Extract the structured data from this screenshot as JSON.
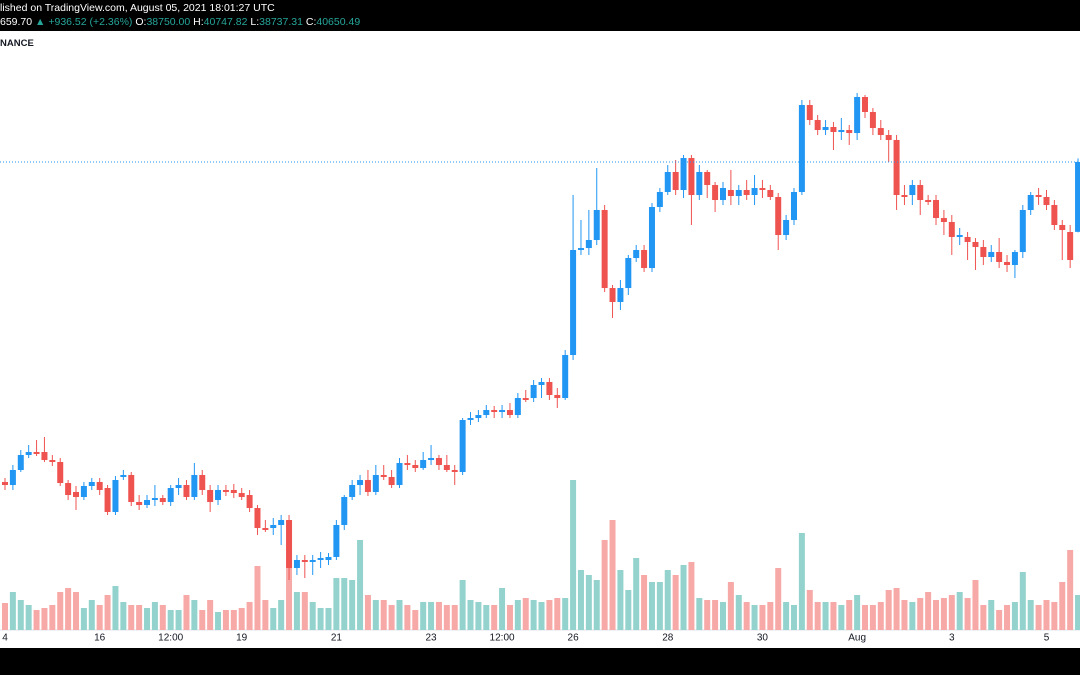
{
  "header": {
    "published": "lished on TradingView.com, August 05, 2021 18:01:27 UTC",
    "last": "659.70",
    "change": "▲ +936.52 (+2.36%)",
    "open_label": "O:",
    "open": "38750.00",
    "high_label": "H:",
    "high": "40747.82",
    "low_label": "L:",
    "low": "38737.31",
    "close_label": "C:",
    "close": "40650.49",
    "symbol": "NANCE"
  },
  "chart_data": {
    "type": "candlestick",
    "categories": [
      "4",
      null,
      null,
      null,
      null,
      null,
      null,
      null,
      null,
      null,
      null,
      null,
      "16",
      null,
      null,
      null,
      null,
      null,
      null,
      null,
      null,
      "12:00",
      null,
      null,
      null,
      null,
      null,
      null,
      null,
      null,
      "19",
      null,
      null,
      null,
      null,
      null,
      null,
      null,
      null,
      null,
      null,
      null,
      "21",
      null,
      null,
      null,
      null,
      null,
      null,
      null,
      null,
      null,
      null,
      null,
      "23",
      null,
      null,
      null,
      null,
      null,
      null,
      null,
      null,
      "12:00",
      null,
      null,
      null,
      null,
      null,
      null,
      null,
      null,
      "26",
      null,
      null,
      null,
      null,
      null,
      null,
      null,
      null,
      null,
      null,
      null,
      "28",
      null,
      null,
      null,
      null,
      null,
      null,
      null,
      null,
      null,
      null,
      null,
      "30",
      null,
      null,
      null,
      null,
      null,
      null,
      null,
      null,
      null,
      null,
      null,
      "Aug",
      null,
      null,
      null,
      null,
      null,
      null,
      null,
      null,
      null,
      null,
      null,
      "3",
      null,
      null,
      null,
      null,
      null,
      null,
      null,
      null,
      null,
      null,
      null,
      "5",
      null,
      null,
      null,
      null
    ],
    "open": [
      31946,
      31864,
      32272,
      32680,
      32762,
      32762,
      32544,
      32490,
      31918,
      31674,
      31538,
      31837,
      31946,
      31782,
      31130,
      32082,
      32136,
      31402,
      31320,
      31456,
      31510,
      31402,
      31782,
      31864,
      31538,
      32136,
      31728,
      31456,
      31728,
      31728,
      31646,
      31592,
      31238,
      30694,
      30694,
      30776,
      30912,
      29606,
      29824,
      29770,
      29824,
      29824,
      29906,
      30776,
      31538,
      31864,
      32000,
      31674,
      32136,
      32082,
      31864,
      32462,
      32408,
      32326,
      32544,
      32598,
      32408,
      32272,
      32218,
      33632,
      33686,
      33768,
      33904,
      33850,
      33904,
      33768,
      34230,
      34230,
      34584,
      34666,
      34312,
      34230,
      35400,
      38256,
      38310,
      38528,
      39344,
      37222,
      36842,
      37222,
      38038,
      38256,
      37766,
      39426,
      39834,
      40378,
      39888,
      40758,
      39752,
      40378,
      40024,
      39616,
      39888,
      39725,
      39888,
      39752,
      39942,
      39888,
      39698,
      38664,
      39072,
      39834,
      42200,
      41792,
      41520,
      41602,
      41466,
      41520,
      41438,
      42418,
      42010,
      41574,
      41384,
      41248,
      39752,
      39752,
      40024,
      39616,
      39616,
      39126,
      39018,
      38610,
      38610,
      38474,
      38338,
      38066,
      38202,
      37930,
      37848,
      38202,
      39344,
      39752,
      39698,
      39480,
      38936,
      38746,
      38750
    ],
    "high": [
      32054,
      32408,
      32816,
      32952,
      33088,
      33170,
      32680,
      32598,
      32000,
      31837,
      31946,
      32054,
      32054,
      31864,
      32109,
      32272,
      32218,
      31592,
      31592,
      31864,
      31592,
      31864,
      32054,
      32000,
      32462,
      32272,
      31864,
      31864,
      31864,
      31891,
      31782,
      31728,
      31320,
      30912,
      30966,
      31048,
      31048,
      29960,
      29960,
      29960,
      30042,
      30014,
      30912,
      31592,
      32000,
      32136,
      32272,
      32408,
      32408,
      32272,
      32598,
      32680,
      32544,
      32762,
      32952,
      32680,
      32680,
      32408,
      33686,
      33850,
      33904,
      34040,
      34013,
      34040,
      34094,
      34366,
      34448,
      34720,
      34774,
      34774,
      34502,
      35536,
      39752,
      39072,
      39344,
      40486,
      39480,
      37304,
      37440,
      38120,
      38392,
      38392,
      39534,
      39942,
      40568,
      40704,
      40840,
      40840,
      40568,
      40432,
      40106,
      40106,
      40432,
      40024,
      40160,
      40296,
      40160,
      40024,
      39806,
      39208,
      39942,
      42336,
      42336,
      41928,
      41792,
      41738,
      41846,
      41656,
      42526,
      42472,
      42118,
      41792,
      41520,
      41384,
      40024,
      40160,
      40160,
      39752,
      39752,
      39344,
      39208,
      38854,
      38746,
      38582,
      38528,
      38392,
      38582,
      38120,
      38256,
      39480,
      39834,
      39942,
      39888,
      39616,
      39072,
      38936,
      40747.82
    ],
    "low": [
      31728,
      31728,
      32218,
      32598,
      32653,
      32490,
      32381,
      31837,
      31456,
      31184,
      31456,
      31728,
      31592,
      31048,
      31048,
      32000,
      31293,
      31184,
      31238,
      31293,
      31320,
      31293,
      31592,
      31456,
      31456,
      31592,
      31130,
      31320,
      31565,
      31510,
      31456,
      31130,
      30504,
      30586,
      30504,
      30232,
      29280,
      29416,
      29334,
      29416,
      29606,
      29688,
      29824,
      30640,
      31456,
      31592,
      31565,
      31592,
      32000,
      31782,
      31782,
      32272,
      32218,
      32272,
      32408,
      32272,
      32218,
      31864,
      32136,
      33496,
      33578,
      33686,
      33686,
      33686,
      33686,
      33686,
      34122,
      34122,
      34230,
      34176,
      33958,
      34176,
      35264,
      38120,
      38120,
      38392,
      37114,
      36406,
      36624,
      37032,
      37930,
      37658,
      37658,
      39290,
      39752,
      39752,
      39670,
      38936,
      39616,
      39670,
      39290,
      39480,
      39480,
      39480,
      39616,
      39480,
      39670,
      39616,
      38256,
      38528,
      38936,
      39752,
      41656,
      41384,
      41384,
      40976,
      41248,
      41112,
      41248,
      41846,
      41384,
      41248,
      40650,
      39344,
      39480,
      39480,
      39208,
      39480,
      38936,
      38664,
      38120,
      38392,
      37984,
      37712,
      37848,
      37930,
      37766,
      37658,
      37494,
      38038,
      39208,
      39480,
      39344,
      38800,
      37984,
      37766,
      38737.31
    ],
    "close": [
      31864,
      32272,
      32680,
      32762,
      32707,
      32544,
      32490,
      31918,
      31592,
      31538,
      31837,
      31946,
      31728,
      31130,
      32000,
      32136,
      31402,
      31320,
      31456,
      31510,
      31402,
      31782,
      31864,
      31538,
      32136,
      31728,
      31402,
      31728,
      31674,
      31646,
      31538,
      31238,
      30694,
      30640,
      30776,
      30912,
      29606,
      29824,
      29770,
      29824,
      29878,
      29906,
      30776,
      31538,
      31864,
      32000,
      31674,
      32136,
      32082,
      31864,
      32462,
      32408,
      32326,
      32544,
      32598,
      32408,
      32272,
      32218,
      33632,
      33686,
      33768,
      33904,
      33850,
      33904,
      33768,
      34230,
      34176,
      34584,
      34666,
      34312,
      34230,
      35400,
      38256,
      38310,
      38528,
      39344,
      37222,
      36842,
      37222,
      38038,
      38256,
      37766,
      39426,
      39834,
      40378,
      39888,
      40758,
      39752,
      40378,
      40024,
      39616,
      39942,
      39725,
      39888,
      39752,
      39942,
      39888,
      39698,
      38664,
      39072,
      39834,
      42200,
      41792,
      41520,
      41602,
      41466,
      41520,
      41438,
      42418,
      42010,
      41574,
      41384,
      41248,
      39752,
      39698,
      40024,
      39616,
      39562,
      39126,
      39018,
      38610,
      38664,
      38474,
      38338,
      38066,
      38202,
      37930,
      37848,
      38202,
      39344,
      39752,
      39698,
      39480,
      38936,
      38800,
      37984,
      40650.49
    ],
    "volume": [
      5400,
      7600,
      6000,
      5000,
      4000,
      4400,
      5000,
      7600,
      8400,
      7600,
      4400,
      6000,
      5000,
      7000,
      8800,
      5600,
      5000,
      5000,
      4400,
      5600,
      5000,
      4000,
      4000,
      7000,
      6000,
      4000,
      6000,
      3600,
      4000,
      4000,
      4400,
      5600,
      12800,
      6000,
      4400,
      6000,
      12400,
      7600,
      7600,
      5600,
      4400,
      4400,
      10400,
      10400,
      10000,
      18000,
      7000,
      6000,
      6000,
      5000,
      6000,
      5000,
      4000,
      5600,
      5600,
      5600,
      5000,
      5000,
      10000,
      6000,
      5600,
      5000,
      5000,
      8400,
      5000,
      6000,
      6400,
      6000,
      5600,
      6000,
      6400,
      6400,
      30000,
      12000,
      11000,
      10000,
      18000,
      22000,
      12000,
      8000,
      14400,
      11000,
      9600,
      9600,
      12000,
      11000,
      13000,
      13600,
      6400,
      6000,
      6000,
      5600,
      9600,
      7000,
      5600,
      5000,
      5000,
      5600,
      12400,
      5600,
      5000,
      19400,
      8000,
      5600,
      5600,
      5600,
      5000,
      6000,
      7000,
      5000,
      5000,
      5600,
      8000,
      8400,
      6000,
      5600,
      6400,
      7600,
      6000,
      6400,
      7000,
      7600,
      6400,
      10000,
      5000,
      6000,
      4000,
      5000,
      5600,
      11600,
      6000,
      5000,
      6000,
      5600,
      9600,
      16000,
      7000
    ],
    "up_color": "#2196f3",
    "down_color": "#ef5350",
    "volume_up_color": "#94d3cd",
    "volume_down_color": "#f7a9a7",
    "price_line_color": "#2196f3",
    "ylim": [
      27920,
      44186
    ],
    "volume_lim": [
      0,
      120000
    ]
  }
}
